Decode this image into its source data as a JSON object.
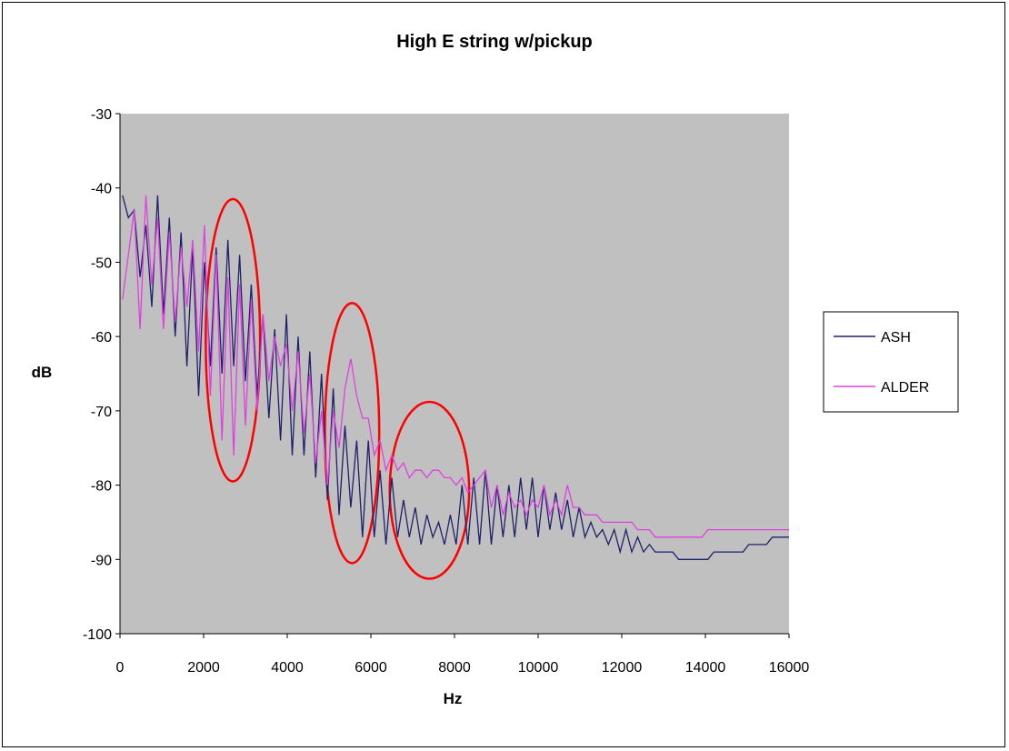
{
  "chart_data": {
    "type": "line",
    "title": "High E string w/pickup",
    "xlabel": "Hz",
    "ylabel": "dB",
    "xlim": [
      0,
      16000
    ],
    "ylim": [
      -100,
      -30
    ],
    "xticks": [
      0,
      2000,
      4000,
      6000,
      8000,
      10000,
      12000,
      14000,
      16000
    ],
    "yticks": [
      -30,
      -40,
      -50,
      -60,
      -70,
      -80,
      -90,
      -100
    ],
    "grid": false,
    "plot_background": "#c0c0c0",
    "legend": {
      "placement": "right"
    },
    "series": [
      {
        "name": "ASH",
        "color": "#1f1f6e",
        "x": [
          60,
          200,
          340,
          480,
          620,
          760,
          900,
          1040,
          1180,
          1320,
          1460,
          1600,
          1740,
          1880,
          2020,
          2160,
          2300,
          2440,
          2580,
          2720,
          2860,
          3000,
          3140,
          3280,
          3420,
          3560,
          3700,
          3840,
          3980,
          4120,
          4260,
          4400,
          4540,
          4680,
          4820,
          4960,
          5100,
          5240,
          5380,
          5520,
          5660,
          5800,
          5940,
          6080,
          6220,
          6360,
          6500,
          6640,
          6780,
          6920,
          7060,
          7200,
          7340,
          7480,
          7620,
          7760,
          7900,
          8040,
          8180,
          8320,
          8460,
          8600,
          8740,
          8880,
          9020,
          9160,
          9300,
          9440,
          9580,
          9720,
          9860,
          10000,
          10140,
          10280,
          10420,
          10560,
          10700,
          10840,
          10980,
          11120,
          11260,
          11400,
          11540,
          11680,
          11820,
          11960,
          12100,
          12240,
          12380,
          12520,
          12660,
          12800,
          12940,
          13080,
          13220,
          13360,
          13500,
          13640,
          13780,
          13920,
          14060,
          14200,
          14340,
          14480,
          14620,
          14760,
          14900,
          15040,
          15180,
          15320,
          15460,
          15600,
          15740,
          15880,
          16000
        ],
        "y": [
          -41,
          -44,
          -43,
          -52,
          -45,
          -56,
          -41,
          -57,
          -44,
          -60,
          -46,
          -64,
          -48,
          -68,
          -50,
          -64,
          -48,
          -65,
          -47,
          -64,
          -49,
          -66,
          -53,
          -68,
          -57,
          -71,
          -59,
          -74,
          -57,
          -76,
          -60,
          -76,
          -62,
          -79,
          -65,
          -82,
          -67,
          -84,
          -72,
          -83,
          -74,
          -87,
          -74,
          -87,
          -78,
          -88,
          -79,
          -87,
          -82,
          -87,
          -83,
          -88,
          -84,
          -87,
          -85,
          -88,
          -84,
          -88,
          -80,
          -88,
          -79,
          -88,
          -78,
          -88,
          -80,
          -87,
          -80,
          -87,
          -79,
          -86,
          -79,
          -87,
          -80,
          -86,
          -81,
          -86,
          -82,
          -87,
          -83,
          -87,
          -85,
          -87,
          -86,
          -88,
          -86,
          -89,
          -86,
          -89,
          -87,
          -89,
          -88,
          -89,
          -89,
          -89,
          -89,
          -90,
          -90,
          -90,
          -90,
          -90,
          -90,
          -89,
          -89,
          -89,
          -89,
          -89,
          -89,
          -88,
          -88,
          -88,
          -88,
          -87,
          -87,
          -87,
          -87
        ]
      },
      {
        "name": "ALDER",
        "color": "#e040e0",
        "x": [
          60,
          200,
          340,
          480,
          620,
          760,
          900,
          1040,
          1180,
          1320,
          1460,
          1600,
          1740,
          1880,
          2020,
          2160,
          2300,
          2440,
          2580,
          2720,
          2860,
          3000,
          3140,
          3280,
          3420,
          3560,
          3700,
          3840,
          3980,
          4120,
          4260,
          4400,
          4540,
          4680,
          4820,
          4960,
          5100,
          5240,
          5380,
          5520,
          5660,
          5800,
          5940,
          6080,
          6220,
          6360,
          6500,
          6640,
          6780,
          6920,
          7060,
          7200,
          7340,
          7480,
          7620,
          7760,
          7900,
          8040,
          8180,
          8320,
          8460,
          8600,
          8740,
          8880,
          9020,
          9160,
          9300,
          9440,
          9580,
          9720,
          9860,
          10000,
          10140,
          10280,
          10420,
          10560,
          10700,
          10840,
          10980,
          11120,
          11260,
          11400,
          11540,
          11680,
          11820,
          11960,
          12100,
          12240,
          12380,
          12520,
          12660,
          12800,
          12940,
          13080,
          13220,
          13360,
          13500,
          13640,
          13780,
          13920,
          14060,
          14200,
          14340,
          14480,
          14620,
          14760,
          14900,
          15040,
          15180,
          15320,
          15460,
          15600,
          15740,
          15880,
          16000
        ],
        "y": [
          -55,
          -49,
          -43,
          -59,
          -41,
          -53,
          -44,
          -59,
          -46,
          -58,
          -48,
          -56,
          -47,
          -62,
          -45,
          -68,
          -49,
          -74,
          -52,
          -76,
          -53,
          -72,
          -55,
          -70,
          -57,
          -66,
          -60,
          -64,
          -61,
          -70,
          -62,
          -73,
          -65,
          -77,
          -70,
          -80,
          -70,
          -75,
          -67,
          -63,
          -68,
          -71,
          -71,
          -76,
          -74,
          -78,
          -76,
          -78,
          -77,
          -79,
          -78,
          -78,
          -79,
          -78,
          -78,
          -79,
          -79,
          -80,
          -79,
          -81,
          -80,
          -79,
          -78,
          -83,
          -80,
          -84,
          -81,
          -83,
          -82,
          -84,
          -82,
          -83,
          -80,
          -84,
          -82,
          -84,
          -80,
          -83,
          -83,
          -84,
          -84,
          -84,
          -85,
          -85,
          -85,
          -85,
          -85,
          -85,
          -86,
          -86,
          -86,
          -87,
          -87,
          -87,
          -87,
          -87,
          -87,
          -87,
          -87,
          -87,
          -86,
          -86,
          -86,
          -86,
          -86,
          -86,
          -86,
          -86,
          -86,
          -86,
          -86,
          -86,
          -86,
          -86,
          -86
        ]
      }
    ],
    "annotations": [
      {
        "shape": "ellipse",
        "color": "#ff0000",
        "cx": 2700,
        "cy": -60.5,
        "rx": 650,
        "ry": 19
      },
      {
        "shape": "ellipse",
        "color": "#ff0000",
        "cx": 5550,
        "cy": -73,
        "rx": 650,
        "ry": 17.5
      },
      {
        "shape": "ellipse",
        "color": "#ff0000",
        "cx": 7400,
        "cy": -80.7,
        "rx": 950,
        "ry": 11.9
      }
    ]
  }
}
